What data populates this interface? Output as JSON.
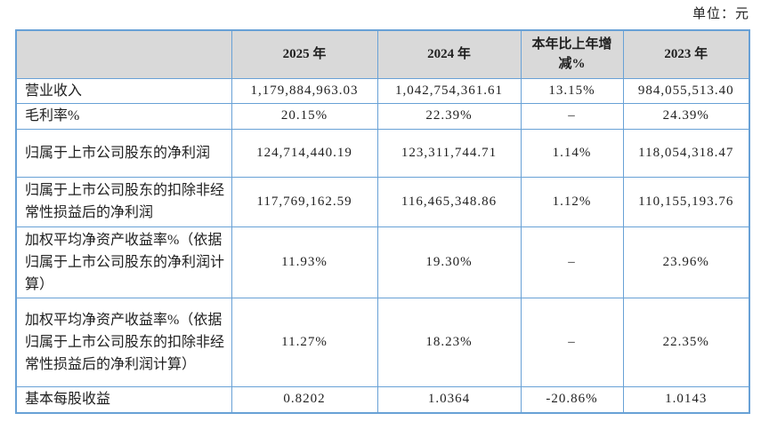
{
  "page": {
    "unit_label": "单位：元"
  },
  "theme": {
    "border": "#68a1d6",
    "headerBg": "#d9d9d9",
    "text": "#1f1f1f",
    "pageBg": "#ffffff"
  },
  "table": {
    "columns": [
      "",
      "2025 年",
      "2024 年",
      "本年比上年增减%",
      "2023 年"
    ],
    "rows": [
      {
        "label": "营业收入",
        "values": [
          "1,179,884,963.03",
          "1,042,754,361.61",
          "13.15%",
          "984,055,513.40"
        ]
      },
      {
        "label": "毛利率%",
        "values": [
          "20.15%",
          "22.39%",
          "–",
          "24.39%"
        ]
      },
      {
        "label": "归属于上市公司股东的净利润",
        "values": [
          "124,714,440.19",
          "123,311,744.71",
          "1.14%",
          "118,054,318.47"
        ]
      },
      {
        "label": "归属于上市公司股东的扣除非经常性损益后的净利润",
        "values": [
          "117,769,162.59",
          "116,465,348.86",
          "1.12%",
          "110,155,193.76"
        ]
      },
      {
        "label": "加权平均净资产收益率%（依据归属于上市公司股东的净利润计算）",
        "values": [
          "11.93%",
          "19.30%",
          "–",
          "23.96%"
        ]
      },
      {
        "label": "加权平均净资产收益率%（依据归属于上市公司股东的扣除非经常性损益后的净利润计算）",
        "values": [
          "11.27%",
          "18.23%",
          "–",
          "22.35%"
        ]
      },
      {
        "label": "基本每股收益",
        "values": [
          "0.8202",
          "1.0364",
          "-20.86%",
          "1.0143"
        ]
      }
    ]
  }
}
